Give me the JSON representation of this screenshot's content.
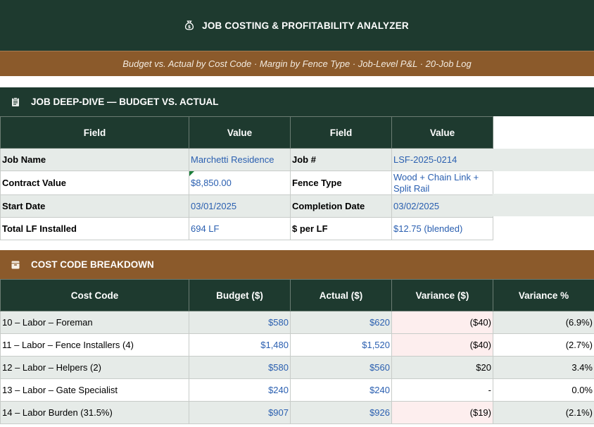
{
  "header": {
    "icon": "money-bag-icon",
    "title": "JOB COSTING & PROFITABILITY ANALYZER",
    "subtitle": "Budget vs. Actual by Cost Code · Margin by Fence Type · Job-Level P&L · 20-Job Log"
  },
  "colors": {
    "dark_green": "#1e3a2f",
    "brown": "#8b5a2b",
    "value_blue": "#2a5fb0",
    "negative_fill": "#fdeeee"
  },
  "deep_dive": {
    "icon": "clipboard-icon",
    "title": "JOB DEEP-DIVE — BUDGET VS. ACTUAL",
    "columns": [
      "Field",
      "Value",
      "Field",
      "Value"
    ],
    "rows": [
      {
        "f1": "Job Name",
        "v1": "Marchetti Residence",
        "f2": "Job #",
        "v2": "LSF-2025-0214"
      },
      {
        "f1": "Contract Value",
        "v1": "$8,850.00",
        "f2": "Fence Type",
        "v2": "Wood + Chain Link + Split Rail"
      },
      {
        "f1": "Start Date",
        "v1": "03/01/2025",
        "f2": "Completion Date",
        "v2": "03/02/2025"
      },
      {
        "f1": "Total LF Installed",
        "v1": "694 LF",
        "f2": "$ per LF",
        "v2": "$12.75 (blended)"
      }
    ]
  },
  "cost_codes": {
    "icon": "archive-box-icon",
    "title": "COST CODE BREAKDOWN",
    "columns": [
      "Cost Code",
      "Budget ($)",
      "Actual ($)",
      "Variance ($)",
      "Variance %"
    ],
    "rows": [
      {
        "code": "10 – Labor – Foreman",
        "budget": "$580",
        "actual": "$620",
        "variance": "($40)",
        "pct": "(6.9%)"
      },
      {
        "code": "11 – Labor – Fence Installers (4)",
        "budget": "$1,480",
        "actual": "$1,520",
        "variance": "($40)",
        "pct": "(2.7%)"
      },
      {
        "code": "12 – Labor – Helpers (2)",
        "budget": "$580",
        "actual": "$560",
        "variance": "$20",
        "pct": "3.4%"
      },
      {
        "code": "13 – Labor – Gate Specialist",
        "budget": "$240",
        "actual": "$240",
        "variance": "-",
        "pct": "0.0%"
      },
      {
        "code": "14 – Labor Burden (31.5%)",
        "budget": "$907",
        "actual": "$926",
        "variance": "($19)",
        "pct": "(2.1%)"
      }
    ]
  }
}
